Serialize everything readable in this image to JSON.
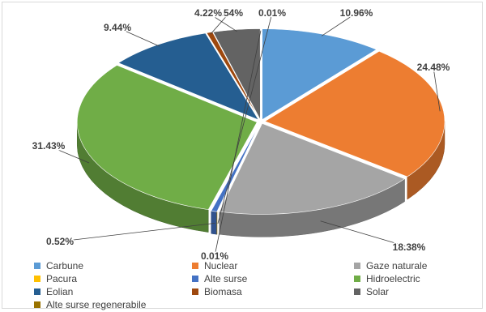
{
  "chart_data": {
    "type": "pie",
    "style": "3d-exploded",
    "legend_position": "bottom",
    "slices": [
      {
        "name": "Carbune",
        "value": 10.96,
        "label": "10.96%",
        "color": "#5b9bd5"
      },
      {
        "name": "Nuclear",
        "value": 24.48,
        "label": "24.48%",
        "color": "#ed7d31"
      },
      {
        "name": "Gaze naturale",
        "value": 18.38,
        "label": "18.38%",
        "color": "#a5a5a5"
      },
      {
        "name": "Pacura",
        "value": 0.01,
        "label": "0.01%",
        "color": "#ffc000"
      },
      {
        "name": "Alte surse",
        "value": 0.52,
        "label": "0.52%",
        "color": "#4472c4"
      },
      {
        "name": "Hidroelectric",
        "value": 31.43,
        "label": "31.43%",
        "color": "#70ad47"
      },
      {
        "name": "Eolian",
        "value": 9.44,
        "label": "9.44%",
        "color": "#255e91"
      },
      {
        "name": "Biomasa",
        "value": 0.54,
        "label": "0.54%",
        "color": "#9e480e"
      },
      {
        "name": "Solar",
        "value": 4.22,
        "label": "4.22%",
        "color": "#636363"
      },
      {
        "name": "Alte surse regenerabile",
        "value": 0.01,
        "label": "0.01%",
        "color": "#997300"
      }
    ]
  }
}
